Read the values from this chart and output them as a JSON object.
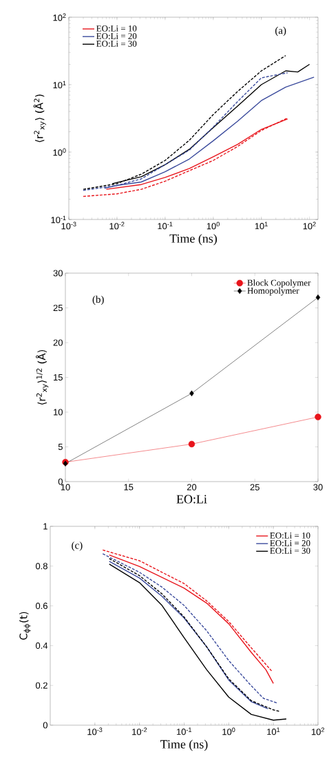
{
  "chart_data": [
    {
      "type": "line",
      "xlabel": "Time (ns)",
      "ylabel": "⟨r$^{2}$$_{xy}$⟩ (Å$^{2}$)",
      "annotations": [
        "(a)"
      ],
      "log": "xy",
      "legend": "top left",
      "xlim": [
        0.001,
        150
      ],
      "ylim": [
        0.1,
        100
      ],
      "xticks": [
        {
          "value": 0.001,
          "label": "10$^{-3}$"
        },
        {
          "value": 0.01,
          "label": "10$^{-2}$"
        },
        {
          "value": 0.1,
          "label": "10$^{-1}$"
        },
        {
          "value": 1,
          "label": "10$^{0}$"
        },
        {
          "value": 10,
          "label": "10$^{1}$"
        },
        {
          "value": 100,
          "label": "10$^{2}$"
        }
      ],
      "yticks": [
        {
          "value": 0.1,
          "label": "10$^{-1}$"
        },
        {
          "value": 1,
          "label": "10$^{0}$"
        },
        {
          "value": 10,
          "label": "10$^{1}$"
        },
        {
          "value": 100,
          "label": "10$^{2}$"
        }
      ],
      "series": [
        {
          "name": "EO:Li = 10",
          "color": "#e8141b",
          "line_style": "solid",
          "x": [
            0.006,
            0.032,
            0.1,
            0.32,
            1,
            3.2,
            10,
            35
          ],
          "values": [
            0.28,
            0.33,
            0.42,
            0.57,
            0.85,
            1.3,
            2.17,
            3.1
          ]
        },
        {
          "name": "EO:Li = 20",
          "color": "#3a4a9c",
          "line_style": "solid",
          "x": [
            0.0055,
            0.01,
            0.032,
            0.1,
            0.32,
            1,
            3.2,
            10,
            32,
            124
          ],
          "values": [
            0.29,
            0.32,
            0.36,
            0.51,
            0.79,
            1.47,
            2.86,
            5.8,
            9.2,
            12.9
          ]
        },
        {
          "name": "EO:Li = 30",
          "color": "#000000",
          "line_style": "solid",
          "x": [
            0.008,
            0.032,
            0.1,
            0.32,
            1,
            3.2,
            10,
            32,
            57,
            100
          ],
          "values": [
            0.34,
            0.43,
            0.65,
            1.1,
            2.3,
            4.8,
            10,
            16,
            15.4,
            20
          ]
        },
        {
          "color": "#e8141b",
          "line_style": "dashed",
          "x": [
            0.002,
            0.01,
            0.032,
            0.1,
            0.32,
            1,
            3.2,
            10,
            35
          ],
          "values": [
            0.22,
            0.24,
            0.28,
            0.37,
            0.53,
            0.75,
            1.21,
            2.09,
            3.2
          ]
        },
        {
          "color": "#3a4a9c",
          "line_style": "dashed",
          "x": [
            0.002,
            0.01,
            0.032,
            0.1,
            0.32,
            1,
            3.2,
            10,
            35
          ],
          "values": [
            0.27,
            0.32,
            0.4,
            0.65,
            1.07,
            2.35,
            5.6,
            12.6,
            15
          ]
        },
        {
          "color": "#000000",
          "line_style": "dashed",
          "x": [
            0.002,
            0.01,
            0.032,
            0.1,
            0.32,
            1,
            3.2,
            10,
            32
          ],
          "values": [
            0.28,
            0.34,
            0.47,
            0.75,
            1.5,
            3.6,
            7.9,
            16,
            27
          ]
        }
      ]
    },
    {
      "type": "line",
      "xlabel": "EO:Li",
      "ylabel": "⟨r$^{2}$$_{xy}$⟩$^{1/2}$ (Å)",
      "annotations": [
        "(b)"
      ],
      "legend": "top right",
      "xlim": [
        10,
        30
      ],
      "ylim": [
        0,
        30
      ],
      "xticks": [
        10,
        15,
        20,
        25,
        30
      ],
      "yticks": [
        0,
        5,
        10,
        15,
        20,
        25,
        30
      ],
      "series": [
        {
          "name": "Block Copolymer",
          "color": "#e8141b",
          "marker": "circle",
          "line_style": "solid",
          "x": [
            10,
            20,
            30
          ],
          "values": [
            2.8,
            5.4,
            9.3
          ]
        },
        {
          "name": "Homopolymer",
          "color": "#000000",
          "marker": "diamond",
          "line_style": "solid",
          "x": [
            10,
            20,
            30
          ],
          "values": [
            2.6,
            12.7,
            26.5
          ]
        }
      ]
    },
    {
      "type": "line",
      "xlabel": "Time (ns)",
      "ylabel": "C$_{ϕϕ}$(t)",
      "annotations": [
        "(c)"
      ],
      "log": "x",
      "legend": "top right",
      "xlim": [
        0.0001,
        100
      ],
      "ylim": [
        0,
        1
      ],
      "xticks": [
        {
          "value": 0.001,
          "label": "10$^{-3}$"
        },
        {
          "value": 0.01,
          "label": "10$^{-2}$"
        },
        {
          "value": 0.1,
          "label": "10$^{-1}$"
        },
        {
          "value": 1,
          "label": "10$^{0}$"
        },
        {
          "value": 10,
          "label": "10$^{1}$"
        },
        {
          "value": 100,
          "label": "10$^{2}$"
        }
      ],
      "yticks": [
        0,
        0.2,
        0.4,
        0.6,
        0.8,
        1
      ],
      "series": [
        {
          "name": "EO:Li = 10",
          "color": "#e8141b",
          "line_style": "solid",
          "x": [
            0.0021,
            0.01,
            0.1,
            0.32,
            1,
            3.2,
            6.8,
            10
          ],
          "values": [
            0.856,
            0.798,
            0.689,
            0.614,
            0.51,
            0.366,
            0.279,
            0.21
          ]
        },
        {
          "name": "EO:Li = 20",
          "color": "#3a4a9c",
          "line_style": "solid",
          "x": [
            0.0021,
            0.01,
            0.032,
            0.1,
            0.32,
            1,
            3.2,
            7.5
          ],
          "values": [
            0.824,
            0.74,
            0.648,
            0.539,
            0.394,
            0.227,
            0.118,
            0.083
          ]
        },
        {
          "name": "EO:Li = 30",
          "color": "#000000",
          "line_style": "solid",
          "x": [
            0.0021,
            0.01,
            0.032,
            0.1,
            0.32,
            1,
            3.2,
            10,
            19.5
          ],
          "values": [
            0.81,
            0.717,
            0.602,
            0.44,
            0.279,
            0.141,
            0.054,
            0.025,
            0.031
          ]
        },
        {
          "color": "#e8141b",
          "line_style": "dashed",
          "x": [
            0.0015,
            0.01,
            0.1,
            0.32,
            1,
            3.2,
            9.1
          ],
          "values": [
            0.881,
            0.827,
            0.712,
            0.625,
            0.521,
            0.389,
            0.273
          ]
        },
        {
          "color": "#3a4a9c",
          "line_style": "dashed",
          "x": [
            0.0015,
            0.01,
            0.032,
            0.1,
            0.32,
            1,
            3.2,
            6,
            12
          ],
          "values": [
            0.862,
            0.769,
            0.694,
            0.602,
            0.475,
            0.325,
            0.198,
            0.135,
            0.112
          ]
        },
        {
          "color": "#000000",
          "line_style": "dashed",
          "x": [
            0.0021,
            0.01,
            0.032,
            0.1,
            0.32,
            1,
            3.2,
            10,
            14
          ],
          "values": [
            0.838,
            0.752,
            0.66,
            0.544,
            0.394,
            0.233,
            0.123,
            0.077,
            0.069
          ]
        }
      ]
    }
  ]
}
